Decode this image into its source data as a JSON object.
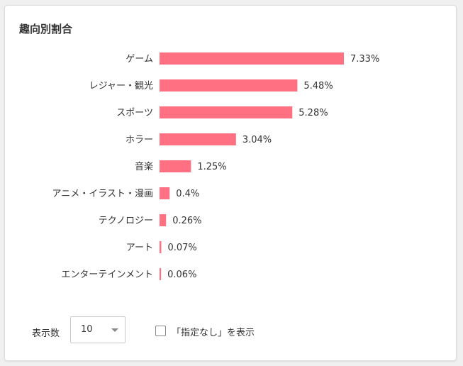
{
  "panel": {
    "title": "趣向別割合"
  },
  "chart_data": {
    "type": "bar",
    "orientation": "horizontal",
    "categories": [
      "ゲーム",
      "レジャー・観光",
      "スポーツ",
      "ホラー",
      "音楽",
      "アニメ・イラスト・漫画",
      "テクノロジー",
      "アート",
      "エンターテインメント"
    ],
    "values": [
      7.33,
      5.48,
      5.28,
      3.04,
      1.25,
      0.4,
      0.26,
      0.07,
      0.06
    ],
    "value_labels": [
      "7.33%",
      "5.48%",
      "5.28%",
      "3.04%",
      "1.25%",
      "0.4%",
      "0.26%",
      "0.07%",
      "0.06%"
    ],
    "unit": "%",
    "xlim": [
      0,
      7.33
    ],
    "bar_color": "#ff7083",
    "grid": false,
    "legend": "none"
  },
  "controls": {
    "count_label": "表示数",
    "count_value": "10",
    "caret_icon": "caret-down-icon",
    "checkbox_checked": false,
    "checkbox_label": "「指定なし」を表示"
  }
}
